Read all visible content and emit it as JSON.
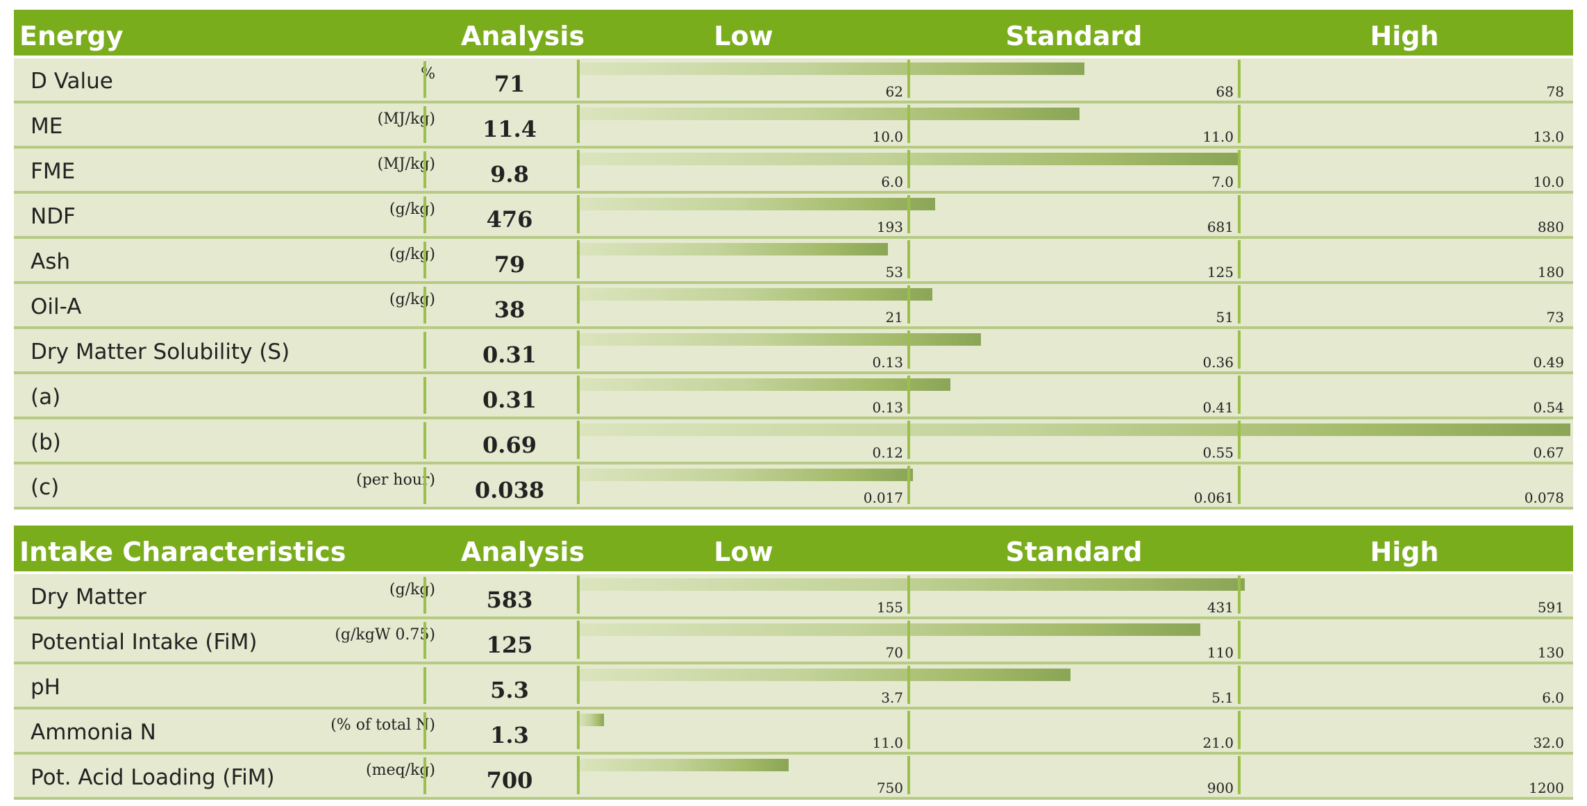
{
  "sections": [
    {
      "title": "Energy",
      "headers": {
        "analysis": "Analysis",
        "low": "Low",
        "standard": "Standard",
        "high": "High"
      },
      "rows": [
        {
          "label": "D Value",
          "unit": "%",
          "value": "71",
          "low": "62",
          "standard": "68",
          "high": "78",
          "bar_fraction": 0.51
        },
        {
          "label": "ME",
          "unit": "(MJ/kg)",
          "value": "11.4",
          "low": "10.0",
          "standard": "11.0",
          "high": "13.0",
          "bar_fraction": 0.505
        },
        {
          "label": "FME",
          "unit": "(MJ/kg)",
          "value": "9.8",
          "low": "6.0",
          "standard": "7.0",
          "high": "10.0",
          "bar_fraction": 0.665
        },
        {
          "label": "NDF",
          "unit": "(g/kg)",
          "value": "476",
          "low": "193",
          "standard": "681",
          "high": "880",
          "bar_fraction": 0.36
        },
        {
          "label": "Ash",
          "unit": "(g/kg)",
          "value": "79",
          "low": "53",
          "standard": "125",
          "high": "180",
          "bar_fraction": 0.312
        },
        {
          "label": "Oil-A",
          "unit": "(g/kg)",
          "value": "38",
          "low": "21",
          "standard": "51",
          "high": "73",
          "bar_fraction": 0.357
        },
        {
          "label": "Dry Matter Solubility (S)",
          "unit": "",
          "value": "0.31",
          "low": "0.13",
          "standard": "0.36",
          "high": "0.49",
          "bar_fraction": 0.406
        },
        {
          "label": "(a)",
          "unit": "",
          "value": "0.31",
          "low": "0.13",
          "standard": "0.41",
          "high": "0.54",
          "bar_fraction": 0.375
        },
        {
          "label": "(b)",
          "unit": "",
          "value": "0.69",
          "low": "0.12",
          "standard": "0.55",
          "high": "0.67",
          "bar_fraction": 1.0
        },
        {
          "label": "(c)",
          "unit": "(per hour)",
          "value": "0.038",
          "low": "0.017",
          "standard": "0.061",
          "high": "0.078",
          "bar_fraction": 0.337
        }
      ]
    },
    {
      "title": "Intake Characteristics",
      "headers": {
        "analysis": "Analysis",
        "low": "Low",
        "standard": "Standard",
        "high": "High"
      },
      "rows": [
        {
          "label": "Dry Matter",
          "unit": "(g/kg)",
          "value": "583",
          "low": "155",
          "standard": "431",
          "high": "591",
          "bar_fraction": 0.672
        },
        {
          "label": "Potential Intake (FiM)",
          "unit": "(g/kgW 0.75)",
          "value": "125",
          "low": "70",
          "standard": "110",
          "high": "130",
          "bar_fraction": 0.627
        },
        {
          "label": "pH",
          "unit": "",
          "value": "5.3",
          "low": "3.7",
          "standard": "5.1",
          "high": "6.0",
          "bar_fraction": 0.496
        },
        {
          "label": "Ammonia N",
          "unit": "(% of total N)",
          "value": "1.3",
          "low": "11.0",
          "standard": "21.0",
          "high": "32.0",
          "bar_fraction": 0.026
        },
        {
          "label": "Pot. Acid Loading (FiM)",
          "unit": "(meq/kg)",
          "value": "700",
          "low": "750",
          "standard": "900",
          "high": "1200",
          "bar_fraction": 0.212
        }
      ]
    }
  ]
}
